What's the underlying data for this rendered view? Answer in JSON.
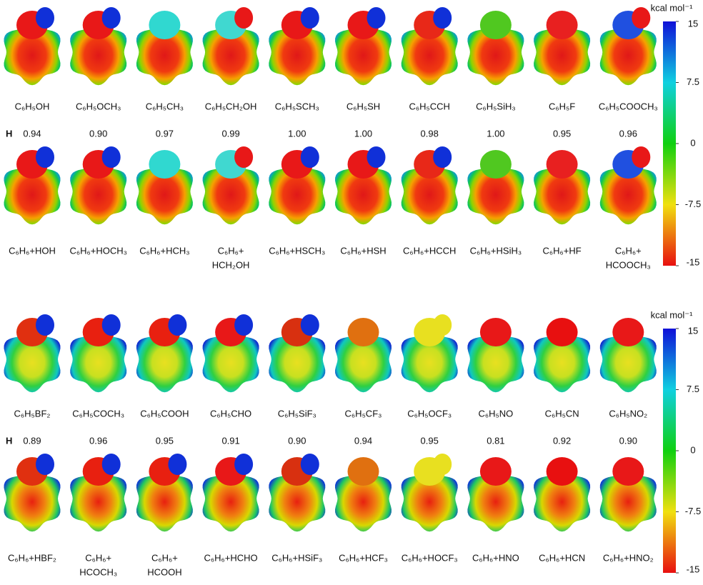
{
  "panels": [
    {
      "molecules": [
        {
          "name": "C₆H₅OH",
          "h": "0.94"
        },
        {
          "name": "C₆H₅OCH₃",
          "h": "0.90"
        },
        {
          "name": "C₆H₅CH₃",
          "h": "0.97"
        },
        {
          "name": "C₆H₅CH₂OH",
          "h": "0.99"
        },
        {
          "name": "C₆H₅SCH₃",
          "h": "1.00"
        },
        {
          "name": "C₆H₅SH",
          "h": "1.00"
        },
        {
          "name": "C₆H₅CCH",
          "h": "0.98"
        },
        {
          "name": "C₆H₅SiH₃",
          "h": "1.00"
        },
        {
          "name": "C₆H₅F",
          "h": "0.95"
        },
        {
          "name": "C₆H₅COOCH₃",
          "h": "0.96"
        }
      ],
      "h_label": "H",
      "complexes": [
        [
          "C₆H₆+HOH"
        ],
        [
          "C₆H₆+HOCH₃"
        ],
        [
          "C₆H₆+HCH₃"
        ],
        [
          "C₆H₆+",
          "HCH₂OH"
        ],
        [
          "C₆H₆+HSCH₃"
        ],
        [
          "C₆H₆+HSH"
        ],
        [
          "C₆H₆+HCCH"
        ],
        [
          "C₆H₆+HSiH₃"
        ],
        [
          "C₆H₆+HF"
        ],
        [
          "C₆H₆+",
          "HCOOCH₃"
        ]
      ],
      "colorbar": {
        "label": "kcal mol⁻¹",
        "range": [
          -15,
          15
        ],
        "ticks": [
          15,
          7.5,
          0,
          -7.5,
          -15
        ]
      }
    },
    {
      "molecules": [
        {
          "name": "C₆H₅BF₂",
          "h": "0.89"
        },
        {
          "name": "C₆H₅COCH₃",
          "h": "0.96"
        },
        {
          "name": "C₆H₅COOH",
          "h": "0.95"
        },
        {
          "name": "C₆H₅CHO",
          "h": "0.91"
        },
        {
          "name": "C₆H₅SiF₃",
          "h": "0.90"
        },
        {
          "name": "C₆H₅CF₃",
          "h": "0.94"
        },
        {
          "name": "C₆H₅OCF₃",
          "h": "0.95"
        },
        {
          "name": "C₆H₅NO",
          "h": "0.81"
        },
        {
          "name": "C₆H₅CN",
          "h": "0.92"
        },
        {
          "name": "C₆H₅NO₂",
          "h": "0.90"
        }
      ],
      "h_label": "H",
      "complexes": [
        [
          "C₆H₆+HBF₂"
        ],
        [
          "C₆H₆+",
          "HCOCH₃"
        ],
        [
          "C₆H₆+",
          "HCOOH"
        ],
        [
          "C₆H₆+HCHO"
        ],
        [
          "C₆H₆+HSiF₃"
        ],
        [
          "C₆H₆+HCF₃"
        ],
        [
          "C₆H₆+HOCF₃"
        ],
        [
          "C₆H₆+HNO"
        ],
        [
          "C₆H₆+HCN"
        ],
        [
          "C₆H₆+HNO₂"
        ]
      ],
      "colorbar": {
        "label": "kcal mol⁻¹",
        "range": [
          -15,
          15
        ],
        "ticks": [
          15,
          7.5,
          0,
          -7.5,
          -15
        ]
      }
    }
  ]
}
